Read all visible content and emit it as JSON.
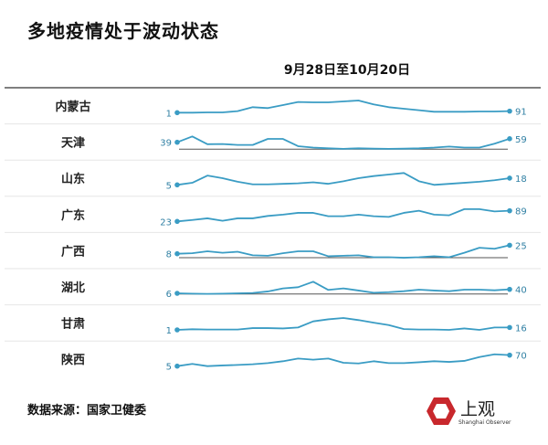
{
  "title": "多地疫情处于波动状态",
  "chart_data": {
    "type": "line",
    "subtitle": "9月28日至10月20日",
    "line_color": "#3a9cc4",
    "zero_line_rows": [
      "天津",
      "广西",
      "湖北"
    ],
    "series": [
      {
        "name": "内蒙古",
        "start_label": "1",
        "end_label": "91",
        "values": [
          1,
          1,
          19,
          19,
          91,
          325,
          271,
          451,
          631,
          613,
          613,
          667,
          721,
          487,
          325,
          235,
          145,
          55,
          55,
          55,
          73,
          73,
          91
        ]
      },
      {
        "name": "天津",
        "start_label": "39",
        "end_label": "59",
        "values": [
          39,
          72,
          28,
          29,
          24,
          24,
          58,
          58,
          17,
          9,
          5,
          2,
          5,
          3,
          2,
          3,
          5,
          9,
          15,
          9,
          9,
          31,
          59
        ]
      },
      {
        "name": "山东",
        "start_label": "5",
        "end_label": "18",
        "values": [
          5,
          9,
          23,
          18,
          11,
          6,
          6,
          7,
          8,
          10,
          7,
          12,
          18,
          22,
          25,
          28,
          12,
          5,
          7,
          9,
          11,
          14,
          18
        ]
      },
      {
        "name": "广东",
        "start_label": "23",
        "end_label": "89",
        "values": [
          23,
          32,
          42,
          27,
          42,
          42,
          57,
          65,
          76,
          76,
          55,
          55,
          65,
          55,
          51,
          76,
          89,
          65,
          61,
          99,
          99,
          85,
          89
        ]
      },
      {
        "name": "广西",
        "start_label": "8",
        "end_label": "25",
        "values": [
          8,
          9,
          13,
          10,
          12,
          5,
          4,
          9,
          13,
          13,
          3,
          4,
          5,
          1,
          1,
          0,
          1,
          3,
          1,
          10,
          20,
          18,
          25
        ]
      },
      {
        "name": "湖北",
        "start_label": "6",
        "end_label": "40",
        "values": [
          6,
          3,
          1,
          3,
          6,
          9,
          22,
          48,
          58,
          105,
          35,
          48,
          30,
          11,
          16,
          24,
          37,
          30,
          24,
          37,
          37,
          32,
          40
        ]
      },
      {
        "name": "甘肃",
        "start_label": "1",
        "end_label": "16",
        "values": [
          1,
          5,
          3,
          3,
          3,
          12,
          12,
          10,
          16,
          54,
          67,
          75,
          62,
          46,
          31,
          6,
          3,
          3,
          1,
          10,
          1,
          16,
          16
        ]
      },
      {
        "name": "陕西",
        "start_label": "5",
        "end_label": "70",
        "values": [
          5,
          18,
          5,
          9,
          12,
          16,
          23,
          34,
          50,
          43,
          50,
          25,
          21,
          34,
          23,
          23,
          28,
          34,
          30,
          36,
          59,
          75,
          70
        ]
      }
    ]
  },
  "source": "数据来源：国家卫健委",
  "logo": {
    "text": "上观",
    "sub": "Shanghai Observer",
    "color": "#c8282d"
  }
}
